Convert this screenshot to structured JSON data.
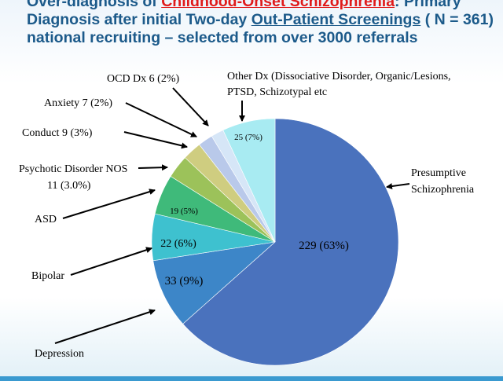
{
  "title": {
    "part1": "Over-diagnosis of ",
    "part2": "Childhood-Onset Schizophrenia",
    "part3": ": Primary Diagnosis after initial Two-day ",
    "part4": "Out-Patient Screenings",
    "part5": " ( N = 361) national recruiting – selected from over 3000 referrals"
  },
  "chart_data": {
    "type": "pie",
    "total": 361,
    "slices": [
      {
        "name": "Presumptive Schizophrenia",
        "value": 229,
        "value_label": "229 (63%)",
        "color": "#4a72bd"
      },
      {
        "name": "Depression",
        "value": 33,
        "value_label": "33 (9%)",
        "color": "#3d86c8"
      },
      {
        "name": "Bipolar",
        "value": 22,
        "value_label": "22 (6%)",
        "color": "#3ec1cf"
      },
      {
        "name": "ASD",
        "value": 19,
        "value_label": "19 (5%)",
        "color": "#3fba7a"
      },
      {
        "name": "Psychotic Disorder NOS 11 (3.0%)",
        "value": 11,
        "value_label": "",
        "color": "#9cc25a"
      },
      {
        "name": "Conduct 9 (3%)",
        "value": 9,
        "value_label": "",
        "color": "#cfcd80"
      },
      {
        "name": "Anxiety 7 (2%)",
        "value": 7,
        "value_label": "",
        "color": "#b9c9ea"
      },
      {
        "name": "OCD Dx 6 (2%)",
        "value": 6,
        "value_label": "",
        "color": "#d6e6f7"
      },
      {
        "name": "Other Dx (Dissociative Disorder, Organic/Lesions, PTSD, Schizotypal etc",
        "value": 25,
        "value_label": "25 (7%)",
        "color": "#a8ebf2"
      }
    ]
  },
  "labels": {
    "presumptive_l1": "Presumptive",
    "presumptive_l2": "Schizophrenia",
    "depression": "Depression",
    "bipolar": "Bipolar",
    "asd": "ASD",
    "psychotic_l1": "Psychotic Disorder NOS",
    "psychotic_l2": "11 (3.0%)",
    "conduct": "Conduct  9 (3%)",
    "anxiety": "Anxiety 7 (2%)",
    "ocd": "OCD Dx  6 (2%)",
    "other_l1": "Other Dx (Dissociative Disorder, Organic/Lesions,",
    "other_l2": "PTSD, Schizotypal etc"
  }
}
